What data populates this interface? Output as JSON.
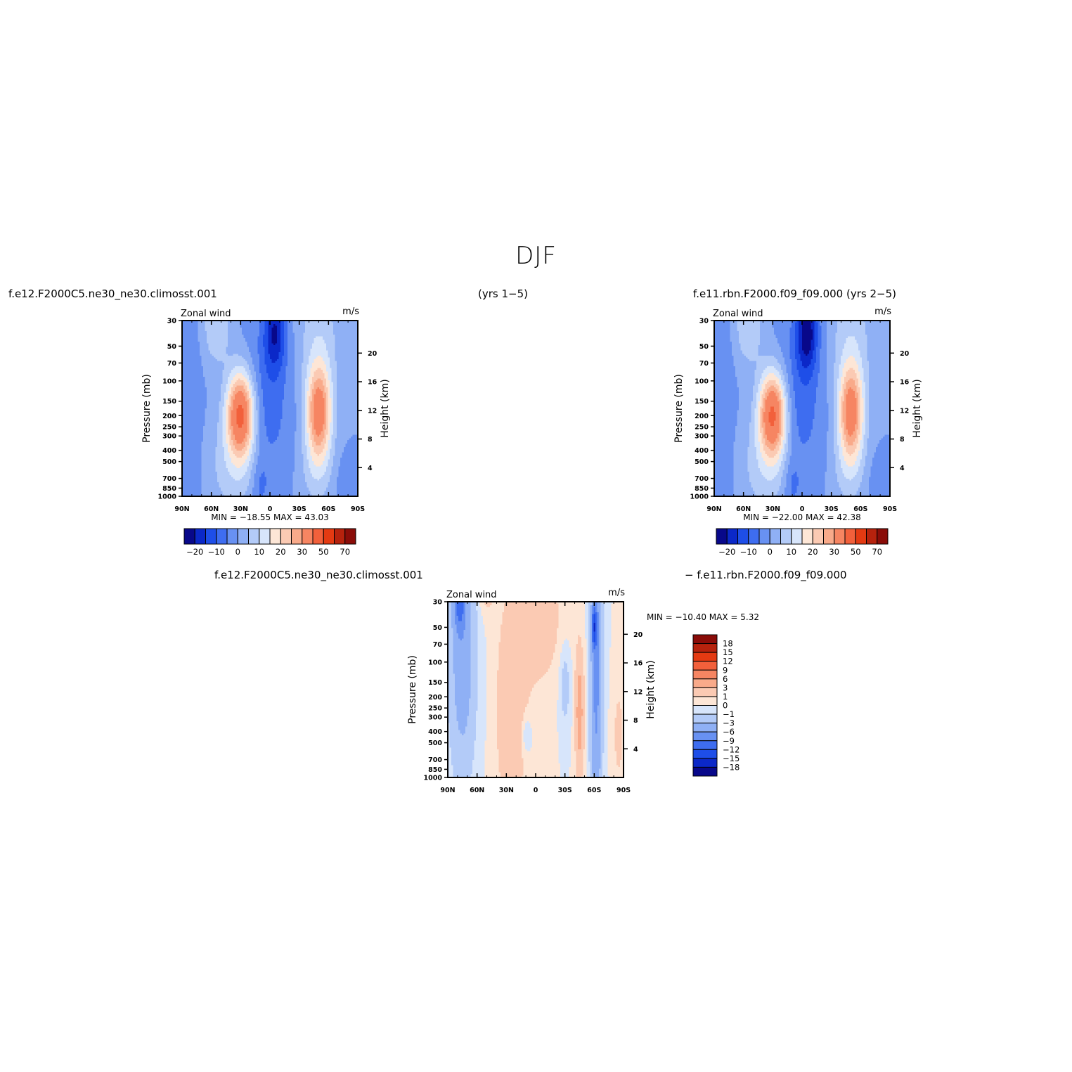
{
  "figure": {
    "title": "DJF",
    "top_left_case": "f.e12.F2000C5.ne30_ne30.climosst.001",
    "years_left": "(yrs  1−5)",
    "top_right_case": "f.e11.rbn.F2000.f09_f09.000  (yrs  2−5)",
    "diff_case_a": "f.e12.F2000C5.ne30_ne30.climosst.001",
    "diff_case_b": "−  f.e11.rbn.F2000.f09_f09.000"
  },
  "colors": {
    "abs_levels": [
      "#08088a",
      "#0b28c8",
      "#1e4ee8",
      "#3e6df0",
      "#6891f2",
      "#8fb0f5",
      "#b3cbf8",
      "#d7e5fb",
      "#fde6d6",
      "#fbcab3",
      "#f9aa8a",
      "#f68562",
      "#f2603b",
      "#e43a12",
      "#b6220d",
      "#8a0c08"
    ],
    "diff_levels": [
      "#08088a",
      "#0b28c8",
      "#1e4ee8",
      "#3e6df0",
      "#6891f2",
      "#8fb0f5",
      "#b3cbf8",
      "#d7e5fb",
      "#fde6d6",
      "#fbcab3",
      "#f9aa8a",
      "#f68562",
      "#f2603b",
      "#e43a12",
      "#b6220d",
      "#8a0c08"
    ]
  },
  "chart_data": [
    {
      "type": "heatmap",
      "name": "case1",
      "left_label": "Zonal wind",
      "right_label": "m/s",
      "ylabel": "Pressure (mb)",
      "ylabel_right": "Height (km)",
      "x_ticks": [
        "90N",
        "60N",
        "30N",
        "0",
        "30S",
        "60S",
        "90S"
      ],
      "y_ticks": [
        30,
        50,
        70,
        100,
        150,
        200,
        250,
        300,
        400,
        500,
        700,
        850,
        1000
      ],
      "height_ticks": [
        20,
        16,
        12,
        8,
        4
      ],
      "ylim": [
        1000,
        30
      ],
      "stats": "MIN =  −18.55   MAX =    43.03",
      "colorbar_labels": [
        "−20",
        "−10",
        "0",
        "10",
        "20",
        "30",
        "50",
        "70"
      ],
      "features": {
        "nh_jet_max": 43.03,
        "nh_jet_lat": 30,
        "nh_jet_p": 200,
        "sh_jet_lat": -50,
        "sh_jet_p": 200,
        "min": -18.55
      }
    },
    {
      "type": "heatmap",
      "name": "case2",
      "left_label": "Zonal wind",
      "right_label": "m/s",
      "ylabel": "Pressure (mb)",
      "ylabel_right": "Height (km)",
      "x_ticks": [
        "90N",
        "60N",
        "30N",
        "0",
        "30S",
        "60S",
        "90S"
      ],
      "y_ticks": [
        30,
        50,
        70,
        100,
        150,
        200,
        250,
        300,
        400,
        500,
        700,
        850,
        1000
      ],
      "height_ticks": [
        20,
        16,
        12,
        8,
        4
      ],
      "ylim": [
        1000,
        30
      ],
      "stats": "MIN =  −22.00   MAX =    42.38",
      "colorbar_labels": [
        "−20",
        "−10",
        "0",
        "10",
        "20",
        "30",
        "50",
        "70"
      ],
      "features": {
        "nh_jet_max": 42.38,
        "nh_jet_lat": 30,
        "nh_jet_p": 200,
        "sh_jet_lat": -50,
        "sh_jet_p": 250,
        "min": -22.0
      }
    },
    {
      "type": "heatmap",
      "name": "difference",
      "left_label": "Zonal wind",
      "right_label": "m/s",
      "ylabel": "Pressure (mb)",
      "ylabel_right": "Height (km)",
      "x_ticks": [
        "90N",
        "60N",
        "30N",
        "0",
        "30S",
        "60S",
        "90S"
      ],
      "y_ticks": [
        30,
        50,
        70,
        100,
        150,
        200,
        250,
        300,
        400,
        500,
        700,
        850,
        1000
      ],
      "height_ticks": [
        20,
        16,
        12,
        8,
        4
      ],
      "ylim": [
        1000,
        30
      ],
      "stats": "MIN =  −10.40   MAX =     5.32",
      "colorbar_labels": [
        "18",
        "15",
        "12",
        "9",
        "6",
        "3",
        "1",
        "0",
        "−1",
        "−3",
        "−6",
        "−9",
        "−12",
        "−15",
        "−18"
      ],
      "features": {
        "min": -10.4,
        "max": 5.32
      }
    }
  ]
}
